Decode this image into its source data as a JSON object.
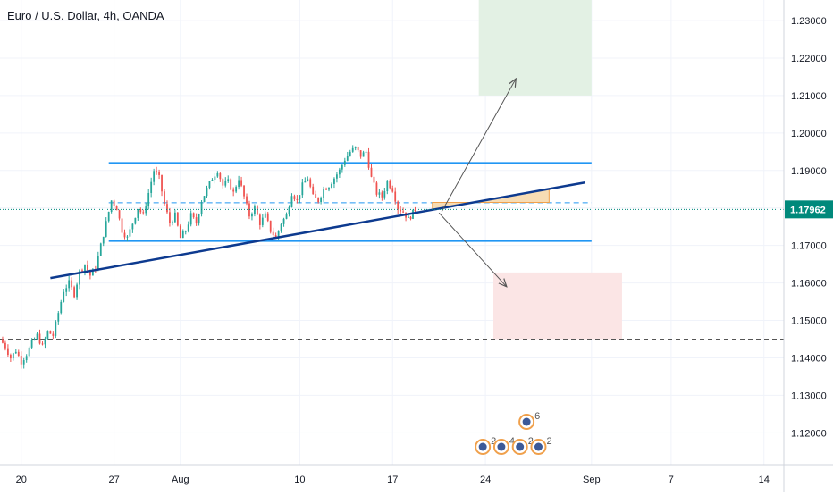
{
  "chart_data": {
    "type": "candlestick",
    "title": "Euro / U.S. Dollar, 4h, OANDA",
    "symbol": "EURUSD",
    "interval": "4h",
    "source": "OANDA",
    "last_price": "1.17962",
    "ylim": [
      1.1115,
      1.2355
    ],
    "y_ticks": [
      "1.23000",
      "1.22000",
      "1.21000",
      "1.20000",
      "1.19000",
      "1.18000",
      "1.17000",
      "1.16000",
      "1.15000",
      "1.14000",
      "1.13000",
      "1.12000"
    ],
    "x_range_days": [
      -1.6,
      29.7
    ],
    "x_ticks": [
      {
        "label": "20",
        "day": 0
      },
      {
        "label": "27",
        "day": 7
      },
      {
        "label": "Aug",
        "day": 12
      },
      {
        "label": "10",
        "day": 21
      },
      {
        "label": "17",
        "day": 28
      },
      {
        "label": "24",
        "day": 35
      },
      {
        "label": "Sep",
        "day": 43
      },
      {
        "label": "7",
        "day": 49
      },
      {
        "label": "14",
        "day": 56
      }
    ],
    "price_path": [
      [
        -1.6,
        1.145
      ],
      [
        -1.2,
        1.143
      ],
      [
        -0.8,
        1.14
      ],
      [
        -0.4,
        1.142
      ],
      [
        0.0,
        1.139
      ],
      [
        0.4,
        1.141
      ],
      [
        0.8,
        1.144
      ],
      [
        1.2,
        1.146
      ],
      [
        1.6,
        1.143
      ],
      [
        2.0,
        1.147
      ],
      [
        2.4,
        1.146
      ],
      [
        2.8,
        1.152
      ],
      [
        3.2,
        1.158
      ],
      [
        3.6,
        1.16
      ],
      [
        4.0,
        1.157
      ],
      [
        4.4,
        1.163
      ],
      [
        4.8,
        1.165
      ],
      [
        5.2,
        1.162
      ],
      [
        5.6,
        1.164
      ],
      [
        6.0,
        1.17
      ],
      [
        6.4,
        1.176
      ],
      [
        6.8,
        1.182
      ],
      [
        7.2,
        1.18
      ],
      [
        7.6,
        1.174
      ],
      [
        8.0,
        1.172
      ],
      [
        8.4,
        1.176
      ],
      [
        8.8,
        1.18
      ],
      [
        9.2,
        1.178
      ],
      [
        9.6,
        1.184
      ],
      [
        10.0,
        1.19
      ],
      [
        10.4,
        1.188
      ],
      [
        10.8,
        1.181
      ],
      [
        11.2,
        1.176
      ],
      [
        11.6,
        1.178
      ],
      [
        12.0,
        1.172
      ],
      [
        12.4,
        1.174
      ],
      [
        12.8,
        1.178
      ],
      [
        13.2,
        1.176
      ],
      [
        13.6,
        1.182
      ],
      [
        14.0,
        1.185
      ],
      [
        14.4,
        1.188
      ],
      [
        14.8,
        1.19
      ],
      [
        15.2,
        1.186
      ],
      [
        15.6,
        1.187
      ],
      [
        16.0,
        1.184
      ],
      [
        16.4,
        1.188
      ],
      [
        16.8,
        1.183
      ],
      [
        17.2,
        1.178
      ],
      [
        17.6,
        1.18
      ],
      [
        18.0,
        1.176
      ],
      [
        18.4,
        1.178
      ],
      [
        18.8,
        1.174
      ],
      [
        19.2,
        1.172
      ],
      [
        19.6,
        1.176
      ],
      [
        20.0,
        1.178
      ],
      [
        20.4,
        1.184
      ],
      [
        20.8,
        1.182
      ],
      [
        21.2,
        1.186
      ],
      [
        21.6,
        1.188
      ],
      [
        22.0,
        1.183
      ],
      [
        22.4,
        1.182
      ],
      [
        22.8,
        1.185
      ],
      [
        23.2,
        1.186
      ],
      [
        23.6,
        1.188
      ],
      [
        24.0,
        1.19
      ],
      [
        24.4,
        1.193
      ],
      [
        24.8,
        1.195
      ],
      [
        25.2,
        1.196
      ],
      [
        25.6,
        1.194
      ],
      [
        26.0,
        1.195
      ],
      [
        26.4,
        1.188
      ],
      [
        26.8,
        1.184
      ],
      [
        27.2,
        1.183
      ],
      [
        27.6,
        1.187
      ],
      [
        28.0,
        1.185
      ],
      [
        28.4,
        1.18
      ],
      [
        28.8,
        1.179
      ],
      [
        29.2,
        1.177
      ],
      [
        29.7,
        1.1796
      ]
    ],
    "channel_top": 1.192,
    "channel_bottom": 1.1712,
    "channel_mid": 1.1814,
    "channel_range_days": [
      6.6,
      34.0
    ],
    "trendline": {
      "start": [
        2.2,
        1.1613
      ],
      "end": [
        42.5,
        1.1868
      ]
    },
    "support_dashed": 1.145,
    "tp_zone": {
      "days": [
        34.5,
        43.0
      ],
      "price": [
        1.2355,
        1.21
      ]
    },
    "sl_zone": {
      "days": [
        35.6,
        45.3
      ],
      "price": [
        1.1628,
        1.145
      ]
    },
    "entry_zone": {
      "days": [
        31.0,
        39.8
      ],
      "price": [
        1.1815,
        1.1763
      ]
    },
    "arrow_up": {
      "from": [
        31.7,
        1.179
      ],
      "to": [
        37.3,
        1.2145
      ]
    },
    "arrow_down": {
      "from": [
        31.5,
        1.1787
      ],
      "to": [
        36.6,
        1.159
      ]
    },
    "events": [
      {
        "day": 34.8,
        "label": "2"
      },
      {
        "day": 36.2,
        "label": "4"
      },
      {
        "day": 37.6,
        "label": "2"
      },
      {
        "day": 39.0,
        "label": "2"
      },
      {
        "day": 38.1,
        "label": "6"
      }
    ]
  },
  "colors": {
    "up": "#26a69a",
    "down": "#ef5350",
    "channel": "#2196f3",
    "trend": "#0d3a8f",
    "price_line": "#00897b",
    "tp_fill": "#e3f1e4",
    "sl_fill": "#fbe5e5",
    "entry_fill": "#f7dcb4"
  }
}
